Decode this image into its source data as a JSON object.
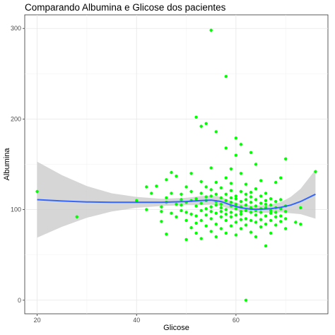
{
  "chart_data": {
    "type": "scatter",
    "title": "Comparando Albumina e Glicose dos pacientes",
    "xlabel": "Glicose",
    "ylabel": "Albumina",
    "xlim": [
      17.5,
      78.5
    ],
    "ylim": [
      -15,
      315
    ],
    "x_ticks": [
      20,
      40,
      60
    ],
    "y_ticks": [
      0,
      100,
      200,
      300
    ],
    "grid": true,
    "point_color": "#00ff00",
    "smooth_color": "#3366ff",
    "ribbon_color": "#cccccc",
    "points": [
      [
        20,
        120
      ],
      [
        28,
        92
      ],
      [
        40,
        110
      ],
      [
        42,
        100
      ],
      [
        42,
        125
      ],
      [
        43,
        118
      ],
      [
        44,
        126
      ],
      [
        45,
        103
      ],
      [
        45,
        87
      ],
      [
        45,
        98
      ],
      [
        46,
        133
      ],
      [
        46,
        73
      ],
      [
        46,
        108
      ],
      [
        46,
        113
      ],
      [
        47,
        141
      ],
      [
        47,
        118
      ],
      [
        47,
        96
      ],
      [
        48,
        106
      ],
      [
        48,
        92
      ],
      [
        48,
        137
      ],
      [
        49,
        105
      ],
      [
        49,
        117
      ],
      [
        49,
        99
      ],
      [
        49,
        111
      ],
      [
        50,
        67
      ],
      [
        50,
        97
      ],
      [
        50,
        108
      ],
      [
        50,
        125
      ],
      [
        50,
        88
      ],
      [
        51,
        110
      ],
      [
        51,
        120
      ],
      [
        51,
        95
      ],
      [
        51,
        140
      ],
      [
        51,
        80
      ],
      [
        52,
        202
      ],
      [
        52,
        104
      ],
      [
        52,
        85
      ],
      [
        52,
        112
      ],
      [
        52,
        93
      ],
      [
        52,
        74
      ],
      [
        53,
        192
      ],
      [
        53,
        131
      ],
      [
        53,
        99
      ],
      [
        53,
        118
      ],
      [
        53,
        107
      ],
      [
        53,
        88
      ],
      [
        53,
        68
      ],
      [
        54,
        195
      ],
      [
        54,
        114
      ],
      [
        54,
        101
      ],
      [
        54,
        94
      ],
      [
        54,
        82
      ],
      [
        54,
        125
      ],
      [
        54,
        110
      ],
      [
        55,
        298
      ],
      [
        55,
        146
      ],
      [
        55,
        103
      ],
      [
        55,
        90
      ],
      [
        55,
        115
      ],
      [
        55,
        76
      ],
      [
        55,
        98
      ],
      [
        55,
        122
      ],
      [
        56,
        186
      ],
      [
        56,
        117
      ],
      [
        56,
        105
      ],
      [
        56,
        96
      ],
      [
        56,
        84
      ],
      [
        56,
        109
      ],
      [
        56,
        130
      ],
      [
        56,
        70
      ],
      [
        57,
        106
      ],
      [
        57,
        113
      ],
      [
        57,
        92
      ],
      [
        57,
        98
      ],
      [
        57,
        124
      ],
      [
        57,
        79
      ],
      [
        57,
        102
      ],
      [
        58,
        247
      ],
      [
        58,
        168
      ],
      [
        58,
        110
      ],
      [
        58,
        100
      ],
      [
        58,
        88
      ],
      [
        58,
        117
      ],
      [
        58,
        95
      ],
      [
        58,
        74
      ],
      [
        58,
        135
      ],
      [
        59,
        104
      ],
      [
        59,
        113
      ],
      [
        59,
        92
      ],
      [
        59,
        97
      ],
      [
        59,
        121
      ],
      [
        59,
        82
      ],
      [
        59,
        108
      ],
      [
        59,
        129
      ],
      [
        59,
        145
      ],
      [
        60,
        179
      ],
      [
        60,
        160
      ],
      [
        60,
        112
      ],
      [
        60,
        101
      ],
      [
        60,
        94
      ],
      [
        60,
        86
      ],
      [
        60,
        115
      ],
      [
        60,
        72
      ],
      [
        60,
        106
      ],
      [
        61,
        172
      ],
      [
        61,
        98
      ],
      [
        61,
        109
      ],
      [
        61,
        89
      ],
      [
        61,
        120
      ],
      [
        61,
        103
      ],
      [
        61,
        79
      ],
      [
        61,
        95
      ],
      [
        61,
        140
      ],
      [
        62,
        0
      ],
      [
        62,
        111
      ],
      [
        62,
        99
      ],
      [
        62,
        90
      ],
      [
        62,
        105
      ],
      [
        62,
        117
      ],
      [
        62,
        83
      ],
      [
        62,
        128
      ],
      [
        63,
        163
      ],
      [
        63,
        97
      ],
      [
        63,
        108
      ],
      [
        63,
        88
      ],
      [
        63,
        102
      ],
      [
        63,
        114
      ],
      [
        63,
        75
      ],
      [
        63,
        119
      ],
      [
        64,
        150
      ],
      [
        64,
        104
      ],
      [
        64,
        94
      ],
      [
        64,
        111
      ],
      [
        64,
        86
      ],
      [
        64,
        99
      ],
      [
        64,
        123
      ],
      [
        64,
        70
      ],
      [
        65,
        115
      ],
      [
        65,
        97
      ],
      [
        65,
        107
      ],
      [
        65,
        89
      ],
      [
        65,
        101
      ],
      [
        65,
        81
      ],
      [
        65,
        132
      ],
      [
        66,
        102
      ],
      [
        66,
        110
      ],
      [
        66,
        93
      ],
      [
        66,
        84
      ],
      [
        66,
        118
      ],
      [
        66,
        60
      ],
      [
        66,
        106
      ],
      [
        67,
        105
      ],
      [
        67,
        96
      ],
      [
        67,
        112
      ],
      [
        67,
        88
      ],
      [
        67,
        99
      ],
      [
        67,
        74
      ],
      [
        68,
        102
      ],
      [
        68,
        92
      ],
      [
        68,
        109
      ],
      [
        68,
        83
      ],
      [
        68,
        97
      ],
      [
        68,
        130
      ],
      [
        69,
        135
      ],
      [
        69,
        101
      ],
      [
        69,
        93
      ],
      [
        69,
        87
      ],
      [
        69,
        111
      ],
      [
        70,
        156
      ],
      [
        70,
        98
      ],
      [
        70,
        104
      ],
      [
        70,
        90
      ],
      [
        70,
        79
      ],
      [
        72,
        86
      ],
      [
        73,
        102
      ],
      [
        73,
        84
      ],
      [
        76,
        142
      ]
    ],
    "smooth_line": [
      [
        20,
        111
      ],
      [
        25,
        109.5
      ],
      [
        30,
        108.5
      ],
      [
        35,
        108
      ],
      [
        40,
        108
      ],
      [
        45,
        108
      ],
      [
        50,
        109
      ],
      [
        53,
        110
      ],
      [
        55,
        110.5
      ],
      [
        57,
        109
      ],
      [
        59,
        105
      ],
      [
        61,
        102
      ],
      [
        63,
        100.5
      ],
      [
        65,
        100.5
      ],
      [
        67,
        101
      ],
      [
        69,
        102.5
      ],
      [
        71,
        105
      ],
      [
        73,
        109
      ],
      [
        76,
        117
      ]
    ],
    "ribbon_upper": [
      [
        20,
        153
      ],
      [
        25,
        138
      ],
      [
        30,
        126
      ],
      [
        35,
        118
      ],
      [
        40,
        114
      ],
      [
        45,
        112
      ],
      [
        50,
        113
      ],
      [
        53,
        115
      ],
      [
        55,
        115.5
      ],
      [
        57,
        114
      ],
      [
        59,
        109.5
      ],
      [
        61,
        106
      ],
      [
        63,
        104.5
      ],
      [
        65,
        104.5
      ],
      [
        67,
        105.5
      ],
      [
        69,
        108
      ],
      [
        71,
        114
      ],
      [
        73,
        123
      ],
      [
        76,
        144
      ]
    ],
    "ribbon_lower": [
      [
        20,
        69
      ],
      [
        25,
        81
      ],
      [
        30,
        91
      ],
      [
        35,
        98
      ],
      [
        40,
        102
      ],
      [
        45,
        104
      ],
      [
        50,
        105
      ],
      [
        53,
        105
      ],
      [
        55,
        105.5
      ],
      [
        57,
        104
      ],
      [
        59,
        100.5
      ],
      [
        61,
        98
      ],
      [
        63,
        96.5
      ],
      [
        65,
        96.5
      ],
      [
        67,
        96.5
      ],
      [
        69,
        97
      ],
      [
        71,
        96
      ],
      [
        73,
        95
      ],
      [
        76,
        90
      ]
    ]
  }
}
